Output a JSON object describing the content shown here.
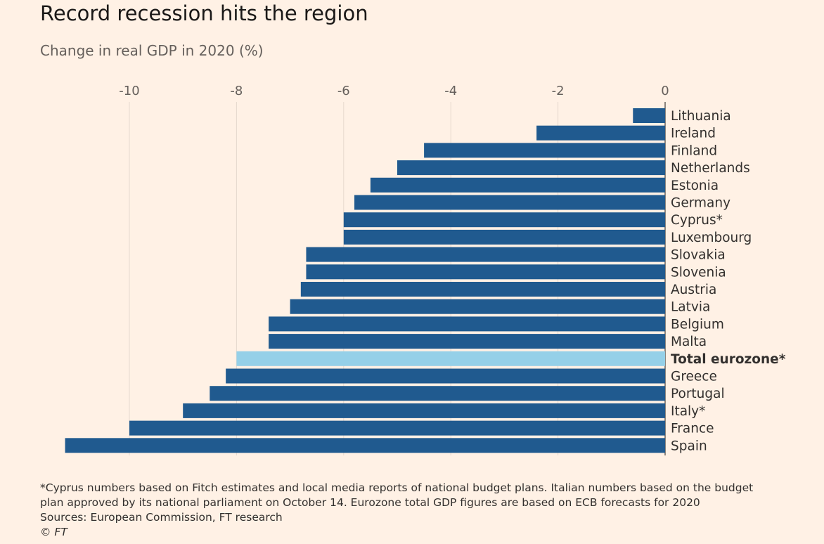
{
  "title": "Record recession hits the region",
  "subtitle": "Change in real GDP in 2020 (%)",
  "chart_data": {
    "type": "bar",
    "orientation": "horizontal",
    "xaxis_position": "top",
    "xlim": [
      -11.2,
      0
    ],
    "xticks": [
      -10,
      -8,
      -6,
      -4,
      -2,
      0
    ],
    "xtick_labels": [
      "-10",
      "-8",
      "-6",
      "-4",
      "-2",
      "0"
    ],
    "grid": true,
    "categories": [
      "Lithuania",
      "Ireland",
      "Finland",
      "Netherlands",
      "Estonia",
      "Germany",
      "Cyprus*",
      "Luxembourg",
      "Slovakia",
      "Slovenia",
      "Austria",
      "Latvia",
      "Belgium",
      "Malta",
      "Total eurozone*",
      "Greece",
      "Portugal",
      "Italy*",
      "France",
      "Spain"
    ],
    "values": [
      -0.6,
      -2.4,
      -4.5,
      -5.0,
      -5.5,
      -5.8,
      -6.0,
      -6.0,
      -6.7,
      -6.7,
      -6.8,
      -7.0,
      -7.4,
      -7.4,
      -8.0,
      -8.2,
      -8.5,
      -9.0,
      -10.0,
      -11.2
    ],
    "highlight": "Total eurozone*",
    "bar_color": "#205a8f",
    "highlight_color": "#95d0e8"
  },
  "footnote": {
    "line1": "*Cyprus numbers based on Fitch estimates and local media reports of national budget plans. Italian numbers based on the budget",
    "line2": "plan approved by its national parliament on October 14. Eurozone total GDP figures are based on ECB forecasts for 2020",
    "sources": "Sources: European Commission, FT research",
    "copyright": "© FT"
  }
}
